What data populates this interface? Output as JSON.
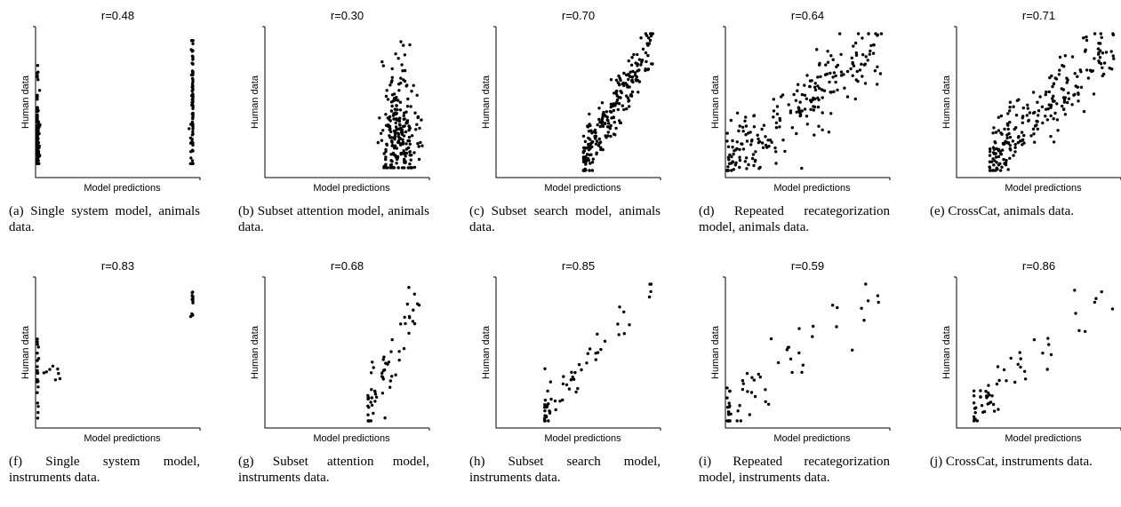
{
  "chart_data": [
    {
      "id": "a",
      "type": "scatter",
      "title": "r=0.48",
      "xlabel": "Model predictions",
      "ylabel": "Human data",
      "caption": "(a) Single system model, animals data.",
      "grid": false,
      "clusters": [
        {
          "x": 0.0,
          "x_spread": 0.008,
          "y_min": 0.05,
          "y_max": 0.78,
          "n": 95,
          "y_center": 0.18,
          "y_spread": 0.12
        },
        {
          "x": 1.0,
          "x_spread": 0.008,
          "y_min": 0.05,
          "y_max": 0.95,
          "n": 85,
          "y_center": 0.55,
          "y_spread": 0.25
        }
      ]
    },
    {
      "id": "b",
      "type": "scatter",
      "title": "r=0.30",
      "xlabel": "Model predictions",
      "ylabel": "Human data",
      "caption": "(b) Subset attention model, animals data.",
      "grid": false,
      "clusters": [
        {
          "x": 0.85,
          "x_spread": 0.06,
          "y_min": 0.02,
          "y_max": 0.95,
          "n": 230,
          "y_center": 0.25,
          "y_spread": 0.18
        }
      ]
    },
    {
      "id": "c",
      "type": "scatter",
      "title": "r=0.70",
      "xlabel": "Model predictions",
      "ylabel": "Human data",
      "caption": "(c) Subset search model, animals data.",
      "grid": false,
      "trend": {
        "n": 230,
        "x_min": 0.55,
        "x_max": 1.0,
        "slope": 1.8,
        "noise": 0.1,
        "x_bias": 0.25
      }
    },
    {
      "id": "d",
      "type": "scatter",
      "title": "r=0.64",
      "xlabel": "Model predictions",
      "ylabel": "Human data",
      "caption": "(d) Repeated recategorization model, animals data.",
      "grid": false,
      "trend": {
        "n": 230,
        "x_min": 0.0,
        "x_max": 1.0,
        "slope": 0.75,
        "noise": 0.13,
        "x_bias": 0.3
      }
    },
    {
      "id": "e",
      "type": "scatter",
      "title": "r=0.71",
      "xlabel": "Model predictions",
      "ylabel": "Human data",
      "caption": "(e) CrossCat, animals data.",
      "grid": false,
      "trend": {
        "n": 230,
        "x_min": 0.2,
        "x_max": 1.0,
        "slope": 1.0,
        "noise": 0.12,
        "x_bias": 0.3
      }
    },
    {
      "id": "f",
      "type": "scatter",
      "title": "r=0.83",
      "xlabel": "Model predictions",
      "ylabel": "Human data",
      "caption": "(f) Single system model, instruments data.",
      "grid": false,
      "clusters": [
        {
          "x": 0.0,
          "x_spread": 0.005,
          "y_min": 0.02,
          "y_max": 0.6,
          "n": 22,
          "y_center": 0.25,
          "y_spread": 0.15
        },
        {
          "x": 0.08,
          "x_spread": 0.04,
          "y_min": 0.3,
          "y_max": 0.42,
          "n": 8,
          "y_center": 0.36,
          "y_spread": 0.03
        },
        {
          "x": 1.0,
          "x_spread": 0.008,
          "y_min": 0.72,
          "y_max": 0.95,
          "n": 12,
          "y_center": 0.83,
          "y_spread": 0.07
        }
      ]
    },
    {
      "id": "g",
      "type": "scatter",
      "title": "r=0.68",
      "xlabel": "Model predictions",
      "ylabel": "Human data",
      "caption": "(g) Subset attention model, instruments data.",
      "grid": false,
      "trend": {
        "n": 60,
        "x_min": 0.65,
        "x_max": 1.0,
        "slope": 2.4,
        "noise": 0.12,
        "x_bias": 0.6
      }
    },
    {
      "id": "h",
      "type": "scatter",
      "title": "r=0.85",
      "xlabel": "Model predictions",
      "ylabel": "Human data",
      "caption": "(h) Subset search model, instruments data.",
      "grid": false,
      "trend": {
        "n": 60,
        "x_min": 0.3,
        "x_max": 1.0,
        "slope": 1.2,
        "noise": 0.08,
        "x_bias": 0.8
      }
    },
    {
      "id": "i",
      "type": "scatter",
      "title": "r=0.59",
      "xlabel": "Model predictions",
      "ylabel": "Human data",
      "caption": "(i) Repeated recategorization model, instruments data.",
      "grid": false,
      "trend": {
        "n": 60,
        "x_min": 0.0,
        "x_max": 1.0,
        "slope": 0.75,
        "noise": 0.15,
        "x_bias": 0.7
      }
    },
    {
      "id": "j",
      "type": "scatter",
      "title": "r=0.86",
      "xlabel": "Model predictions",
      "ylabel": "Human data",
      "caption": "(j) CrossCat, instruments data.",
      "grid": false,
      "trend": {
        "n": 60,
        "x_min": 0.1,
        "x_max": 1.0,
        "slope": 1.0,
        "noise": 0.08,
        "x_bias": 0.8
      }
    }
  ]
}
